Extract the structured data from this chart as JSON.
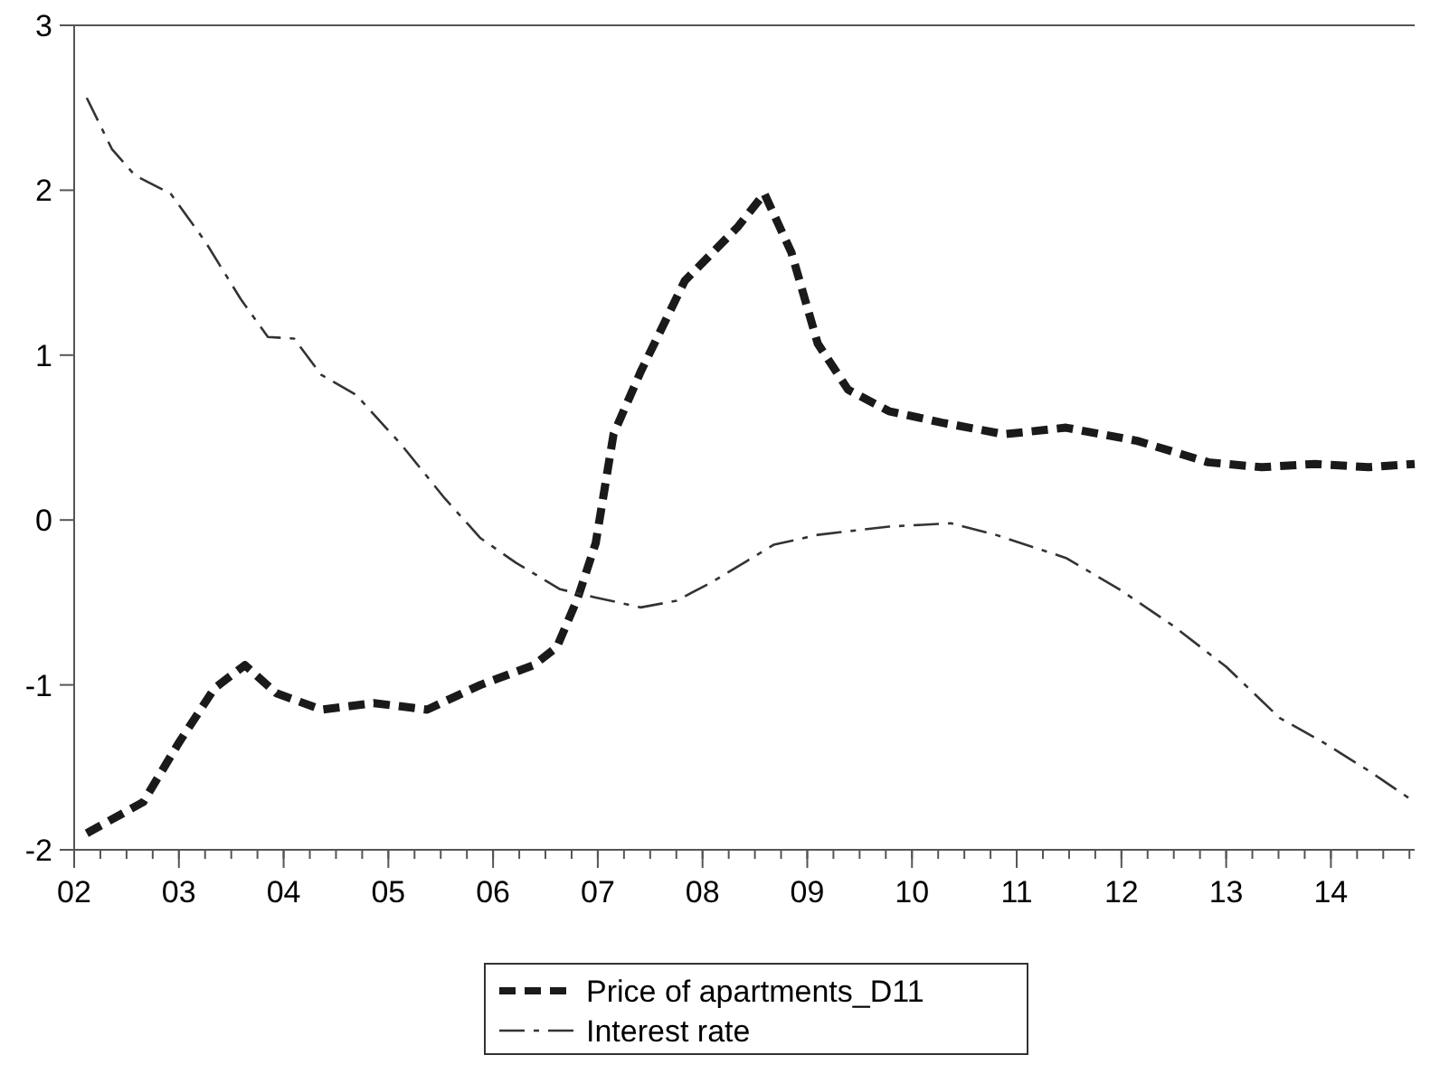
{
  "chart_data": {
    "type": "line",
    "xlim": [
      2002,
      2014.8
    ],
    "xticks": [
      {
        "value": 2002,
        "label": "02"
      },
      {
        "value": 2003,
        "label": "03"
      },
      {
        "value": 2004,
        "label": "04"
      },
      {
        "value": 2005,
        "label": "05"
      },
      {
        "value": 2006,
        "label": "06"
      },
      {
        "value": 2007,
        "label": "07"
      },
      {
        "value": 2008,
        "label": "08"
      },
      {
        "value": 2009,
        "label": "09"
      },
      {
        "value": 2010,
        "label": "10"
      },
      {
        "value": 2011,
        "label": "11"
      },
      {
        "value": 2012,
        "label": "12"
      },
      {
        "value": 2013,
        "label": "13"
      },
      {
        "value": 2014,
        "label": "14"
      }
    ],
    "ylim": [
      -2,
      3
    ],
    "yticks": [
      -2,
      -1,
      0,
      1,
      2,
      3
    ],
    "grid": false,
    "legend": "bottom",
    "line_style": "dashed",
    "series": [
      {
        "name": "Price of apartments_D11",
        "color": "#1a1a1a",
        "x": [
          2002.12,
          2002.66,
          2003.0,
          2003.34,
          2003.63,
          2003.93,
          2004.36,
          2004.86,
          2005.37,
          2005.88,
          2006.39,
          2006.61,
          2006.81,
          2006.98,
          2007.15,
          2007.41,
          2007.83,
          2008.34,
          2008.59,
          2008.85,
          2009.1,
          2009.39,
          2009.78,
          2010.29,
          2010.88,
          2011.47,
          2012.15,
          2012.83,
          2013.34,
          2013.85,
          2014.36,
          2014.8
        ],
        "values": [
          -1.9,
          -1.71,
          -1.35,
          -1.02,
          -0.88,
          -1.05,
          -1.15,
          -1.11,
          -1.15,
          -1.0,
          -0.88,
          -0.77,
          -0.47,
          -0.14,
          0.52,
          0.9,
          1.45,
          1.78,
          1.98,
          1.62,
          1.07,
          0.79,
          0.66,
          0.59,
          0.52,
          0.56,
          0.48,
          0.35,
          0.32,
          0.34,
          0.32,
          0.34
        ]
      },
      {
        "name": "Interest rate",
        "color": "#333333",
        "x": [
          2002.12,
          2002.36,
          2002.58,
          2002.92,
          2003.25,
          2003.59,
          2003.85,
          2004.1,
          2004.36,
          2004.69,
          2005.12,
          2005.54,
          2005.88,
          2006.22,
          2006.64,
          2006.98,
          2007.41,
          2007.75,
          2008.08,
          2008.42,
          2008.68,
          2009.1,
          2009.78,
          2010.37,
          2010.8,
          2011.47,
          2011.98,
          2012.49,
          2013.0,
          2013.51,
          2013.93,
          2014.36,
          2014.8
        ],
        "values": [
          2.56,
          2.25,
          2.09,
          1.98,
          1.69,
          1.34,
          1.11,
          1.1,
          0.88,
          0.76,
          0.46,
          0.13,
          -0.11,
          -0.26,
          -0.42,
          -0.47,
          -0.53,
          -0.49,
          -0.38,
          -0.25,
          -0.15,
          -0.09,
          -0.04,
          -0.02,
          -0.09,
          -0.23,
          -0.42,
          -0.64,
          -0.89,
          -1.2,
          -1.35,
          -1.52,
          -1.71
        ]
      }
    ]
  }
}
